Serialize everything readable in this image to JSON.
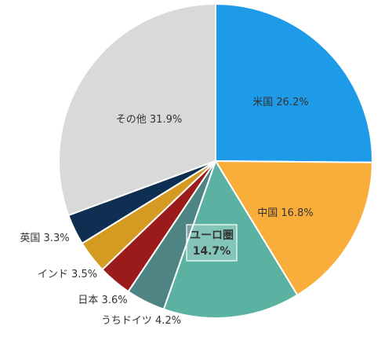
{
  "chart_data": {
    "type": "pie",
    "start_angle_deg": 0,
    "direction": "clockwise",
    "slices": [
      {
        "label": "米国",
        "value": 26.2,
        "display": "米国 26.2%",
        "color": "#1e9be8",
        "text_color": "#ffffff"
      },
      {
        "label": "中国",
        "value": 16.8,
        "display": "中国 16.8%",
        "color": "#f9ae3c",
        "text_color": "#333333"
      },
      {
        "label": "ユーロ圏",
        "value": 14.7,
        "display": "14.7%",
        "color": "#5bb2a2",
        "text_color": "#333333",
        "boxed": true
      },
      {
        "label": "うちドイツ",
        "value": 4.2,
        "display": "うちドイツ 4.2%",
        "color": "#4e8584",
        "text_color": "#333333"
      },
      {
        "label": "日本",
        "value": 3.6,
        "display": "日本 3.6%",
        "color": "#9b1a1a",
        "text_color": "#333333"
      },
      {
        "label": "インド",
        "value": 3.5,
        "display": "インド 3.5%",
        "color": "#d49a22",
        "text_color": "#333333"
      },
      {
        "label": "英国",
        "value": 3.3,
        "display": "英国 3.3%",
        "color": "#0e2e52",
        "text_color": "#333333"
      },
      {
        "label": "その他",
        "value": 31.9,
        "display": "その他 31.9%",
        "color": "#d9d9d9",
        "text_color": "#333333"
      }
    ]
  }
}
